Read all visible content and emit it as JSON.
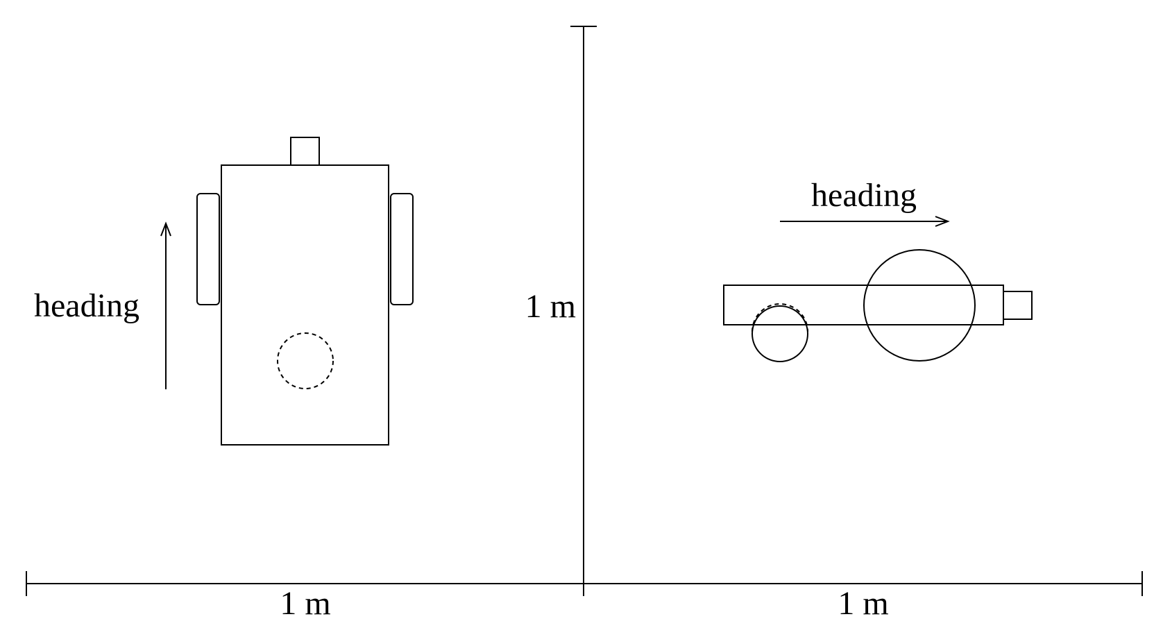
{
  "labels": {
    "heading_left": "heading",
    "heading_right": "heading",
    "vertical_dimension": "1 m",
    "bottom_left_dimension": "1 m",
    "bottom_right_dimension": "1 m"
  },
  "colors": {
    "line": "#000000",
    "background": "#ffffff"
  }
}
